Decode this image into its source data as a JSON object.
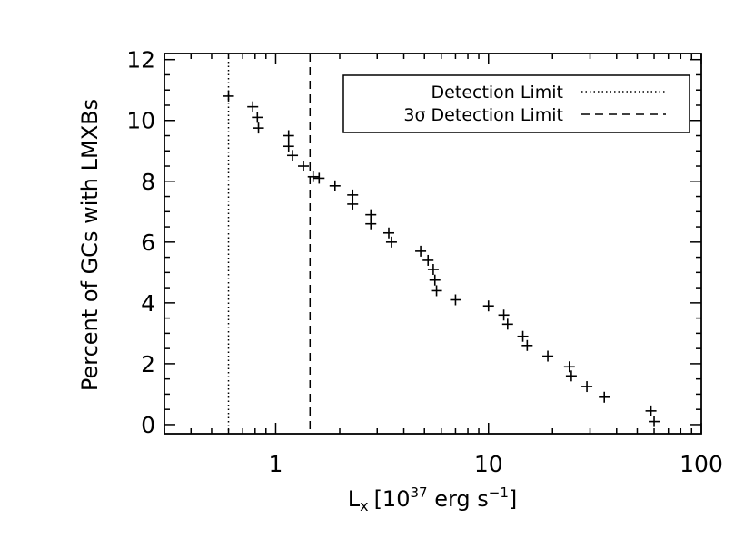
{
  "chart_data": {
    "type": "scatter",
    "xscale": "log",
    "xlim": [
      0.3,
      100
    ],
    "ylim": [
      -0.3,
      12.2
    ],
    "xlabel": "L",
    "xlabel_sub": "x",
    "xlabel_bracket_open": "[10",
    "xlabel_exp": "37",
    "xlabel_units": " erg s",
    "xlabel_units_exp": "−1",
    "xlabel_bracket_close": "]",
    "ylabel": "Percent of GCs with LMXBs",
    "x_tick_labels": [
      {
        "value": 1,
        "label": "1"
      },
      {
        "value": 10,
        "label": "10"
      },
      {
        "value": 100,
        "label": "100"
      }
    ],
    "y_tick_labels": [
      {
        "value": 0,
        "label": "0"
      },
      {
        "value": 2,
        "label": "2"
      },
      {
        "value": 4,
        "label": "4"
      },
      {
        "value": 6,
        "label": "6"
      },
      {
        "value": 8,
        "label": "8"
      },
      {
        "value": 10,
        "label": "10"
      },
      {
        "value": 12,
        "label": "12"
      }
    ],
    "grid": false,
    "legend_position": "top-right",
    "reference_lines": [
      {
        "name": "Detection Limit",
        "x": 0.6,
        "style": "dotted"
      },
      {
        "name": "3σ Detection Limit",
        "x": 1.45,
        "style": "dashed"
      }
    ],
    "points": [
      {
        "x": 0.6,
        "y": 10.8
      },
      {
        "x": 0.78,
        "y": 10.45
      },
      {
        "x": 0.82,
        "y": 10.1
      },
      {
        "x": 0.83,
        "y": 9.75
      },
      {
        "x": 1.15,
        "y": 9.5
      },
      {
        "x": 1.15,
        "y": 9.15
      },
      {
        "x": 1.2,
        "y": 8.85
      },
      {
        "x": 1.35,
        "y": 8.5
      },
      {
        "x": 1.5,
        "y": 8.15
      },
      {
        "x": 1.6,
        "y": 8.1
      },
      {
        "x": 1.9,
        "y": 7.85
      },
      {
        "x": 2.3,
        "y": 7.55
      },
      {
        "x": 2.3,
        "y": 7.25
      },
      {
        "x": 2.8,
        "y": 6.9
      },
      {
        "x": 2.8,
        "y": 6.6
      },
      {
        "x": 3.4,
        "y": 6.3
      },
      {
        "x": 3.5,
        "y": 6.0
      },
      {
        "x": 4.8,
        "y": 5.7
      },
      {
        "x": 5.2,
        "y": 5.4
      },
      {
        "x": 5.5,
        "y": 5.1
      },
      {
        "x": 5.6,
        "y": 4.75
      },
      {
        "x": 5.7,
        "y": 4.4
      },
      {
        "x": 7.0,
        "y": 4.1
      },
      {
        "x": 10.0,
        "y": 3.9
      },
      {
        "x": 11.8,
        "y": 3.6
      },
      {
        "x": 12.3,
        "y": 3.3
      },
      {
        "x": 14.5,
        "y": 2.9
      },
      {
        "x": 15.2,
        "y": 2.6
      },
      {
        "x": 19.0,
        "y": 2.25
      },
      {
        "x": 24.0,
        "y": 1.9
      },
      {
        "x": 24.5,
        "y": 1.6
      },
      {
        "x": 29.0,
        "y": 1.25
      },
      {
        "x": 35.0,
        "y": 0.9
      },
      {
        "x": 58.0,
        "y": 0.45
      },
      {
        "x": 60.0,
        "y": 0.1
      }
    ]
  }
}
